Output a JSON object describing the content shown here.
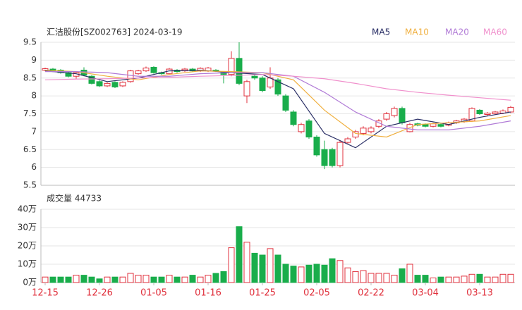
{
  "chart_data": [
    {
      "type": "candlestick",
      "title": "汇洁股份[SZ002763] 2024-03-19",
      "up_color": "#e0303c",
      "down_color": "#19ad4b",
      "open": [
        8.72,
        8.75,
        8.72,
        8.65,
        8.55,
        8.72,
        8.55,
        8.4,
        8.28,
        8.38,
        8.28,
        8.4,
        8.62,
        8.7,
        8.8,
        8.65,
        8.62,
        8.72,
        8.7,
        8.75,
        8.7,
        8.7,
        8.72,
        8.65,
        8.6,
        9.05,
        8.0,
        8.55,
        8.5,
        8.25,
        8.45,
        8.0,
        7.55,
        7.0,
        7.3,
        6.85,
        6.5,
        6.5,
        6.05,
        6.7,
        6.85,
        6.95,
        7.0,
        7.15,
        7.35,
        7.45,
        7.65,
        7.0,
        7.22,
        7.2,
        7.15,
        7.2,
        7.18,
        7.25,
        7.28,
        7.3,
        7.6,
        7.48,
        7.5,
        7.52,
        7.55
      ],
      "high": [
        8.79,
        8.78,
        8.75,
        8.68,
        8.68,
        8.8,
        8.58,
        8.43,
        8.38,
        8.41,
        8.41,
        8.73,
        8.73,
        8.82,
        8.83,
        8.68,
        8.78,
        8.75,
        8.78,
        8.78,
        8.8,
        8.81,
        8.75,
        8.68,
        9.25,
        9.5,
        8.45,
        8.6,
        8.55,
        8.8,
        8.5,
        8.05,
        7.6,
        7.25,
        7.35,
        6.9,
        6.75,
        6.55,
        6.75,
        6.85,
        7.05,
        7.15,
        7.15,
        7.35,
        7.55,
        7.7,
        7.7,
        7.25,
        7.25,
        7.23,
        7.25,
        7.23,
        7.28,
        7.33,
        7.38,
        7.68,
        7.63,
        7.55,
        7.58,
        7.62,
        7.72
      ],
      "low": [
        8.69,
        8.67,
        8.62,
        8.52,
        8.48,
        8.55,
        8.32,
        8.25,
        8.25,
        8.22,
        8.25,
        8.37,
        8.59,
        8.67,
        8.62,
        8.59,
        8.59,
        8.65,
        8.67,
        8.67,
        8.67,
        8.67,
        8.67,
        8.35,
        8.55,
        8.3,
        7.8,
        8.45,
        8.1,
        8.2,
        8.0,
        7.55,
        7.15,
        6.95,
        6.8,
        6.3,
        5.95,
        6.0,
        6.0,
        6.65,
        6.8,
        6.9,
        6.95,
        7.1,
        7.3,
        7.4,
        7.2,
        6.98,
        7.15,
        7.12,
        7.12,
        7.12,
        7.15,
        7.22,
        7.25,
        7.27,
        7.47,
        7.45,
        7.47,
        7.49,
        7.52
      ],
      "close": [
        8.76,
        8.7,
        8.65,
        8.55,
        8.65,
        8.58,
        8.35,
        8.28,
        8.35,
        8.25,
        8.38,
        8.7,
        8.7,
        8.78,
        8.65,
        8.62,
        8.75,
        8.68,
        8.75,
        8.7,
        8.77,
        8.78,
        8.7,
        8.6,
        9.05,
        8.35,
        8.4,
        8.5,
        8.15,
        8.5,
        8.05,
        7.6,
        7.2,
        7.2,
        6.85,
        6.35,
        6.05,
        6.05,
        6.7,
        6.8,
        7.0,
        7.1,
        7.1,
        7.3,
        7.5,
        7.65,
        7.25,
        7.2,
        7.18,
        7.15,
        7.22,
        7.15,
        7.25,
        7.3,
        7.35,
        7.65,
        7.5,
        7.52,
        7.55,
        7.58,
        7.68
      ],
      "series": [
        {
          "name": "MA5",
          "color": "#2a2f66",
          "x": [
            0,
            4,
            8,
            12,
            16,
            20,
            24,
            28,
            32,
            36,
            40,
            44,
            48,
            52,
            56,
            60
          ],
          "values": [
            8.7,
            8.62,
            8.4,
            8.5,
            8.7,
            8.72,
            8.65,
            8.6,
            8.2,
            6.95,
            6.55,
            7.15,
            7.35,
            7.2,
            7.4,
            7.55
          ]
        },
        {
          "name": "MA10",
          "color": "#f0b040",
          "x": [
            0,
            4,
            8,
            12,
            16,
            20,
            24,
            28,
            32,
            36,
            40,
            44,
            48,
            52,
            56,
            60
          ],
          "values": [
            8.72,
            8.68,
            8.55,
            8.45,
            8.6,
            8.7,
            8.68,
            8.65,
            8.45,
            7.6,
            6.95,
            6.85,
            7.2,
            7.25,
            7.3,
            7.45
          ]
        },
        {
          "name": "MA20",
          "color": "#b07ad6",
          "x": [
            0,
            4,
            8,
            12,
            16,
            20,
            24,
            28,
            32,
            36,
            40,
            44,
            48,
            52,
            56,
            60
          ],
          "values": [
            8.68,
            8.68,
            8.65,
            8.55,
            8.55,
            8.62,
            8.65,
            8.65,
            8.55,
            8.1,
            7.55,
            7.15,
            7.05,
            7.05,
            7.15,
            7.3
          ]
        },
        {
          "name": "MA60",
          "color": "#f090cc",
          "x": [
            0,
            4,
            8,
            12,
            16,
            20,
            24,
            28,
            32,
            36,
            40,
            44,
            48,
            52,
            56,
            60
          ],
          "values": [
            8.45,
            8.47,
            8.48,
            8.5,
            8.52,
            8.55,
            8.57,
            8.6,
            8.55,
            8.48,
            8.35,
            8.2,
            8.1,
            8.02,
            7.95,
            7.88
          ]
        }
      ],
      "ylim": [
        5.5,
        9.5
      ],
      "yticks": [
        5.5,
        6,
        6.5,
        7,
        7.5,
        8,
        8.5,
        9,
        9.5
      ],
      "grid": true
    },
    {
      "type": "bar",
      "title": "成交量 44733",
      "categories": [
        "12-15",
        null,
        null,
        null,
        null,
        null,
        null,
        "12-26",
        null,
        null,
        null,
        null,
        null,
        null,
        "01-05",
        null,
        null,
        null,
        null,
        null,
        null,
        "01-16",
        null,
        null,
        null,
        null,
        null,
        null,
        "01-25",
        null,
        null,
        null,
        null,
        null,
        null,
        "02-05",
        null,
        null,
        null,
        null,
        null,
        null,
        "02-22",
        null,
        null,
        null,
        null,
        null,
        null,
        "03-04",
        null,
        null,
        null,
        null,
        null,
        null,
        "03-13",
        null,
        null,
        null,
        null
      ],
      "values": [
        3,
        3,
        3,
        3,
        4,
        4,
        3,
        2,
        3,
        3,
        3,
        5,
        4,
        4,
        3,
        3,
        4,
        3,
        3,
        4,
        3,
        4,
        5,
        6,
        19,
        30.5,
        22,
        16,
        15,
        18.5,
        15,
        10,
        9,
        8.5,
        9.5,
        10,
        9.5,
        13,
        12,
        8,
        6,
        6.5,
        5,
        5,
        5,
        4,
        7.5,
        10,
        4,
        4,
        2.5,
        3,
        3,
        3,
        3.5,
        4.5,
        4.5,
        3,
        3,
        4.5,
        4.5
      ],
      "ylim": [
        0,
        40
      ],
      "yticks": [
        {
          "value": 0,
          "label": "0万"
        },
        {
          "value": 10,
          "label": "10万"
        },
        {
          "value": 20,
          "label": "20万"
        },
        {
          "value": 30,
          "label": "30万"
        },
        {
          "value": 40,
          "label": "40万"
        }
      ],
      "grid": true
    }
  ]
}
